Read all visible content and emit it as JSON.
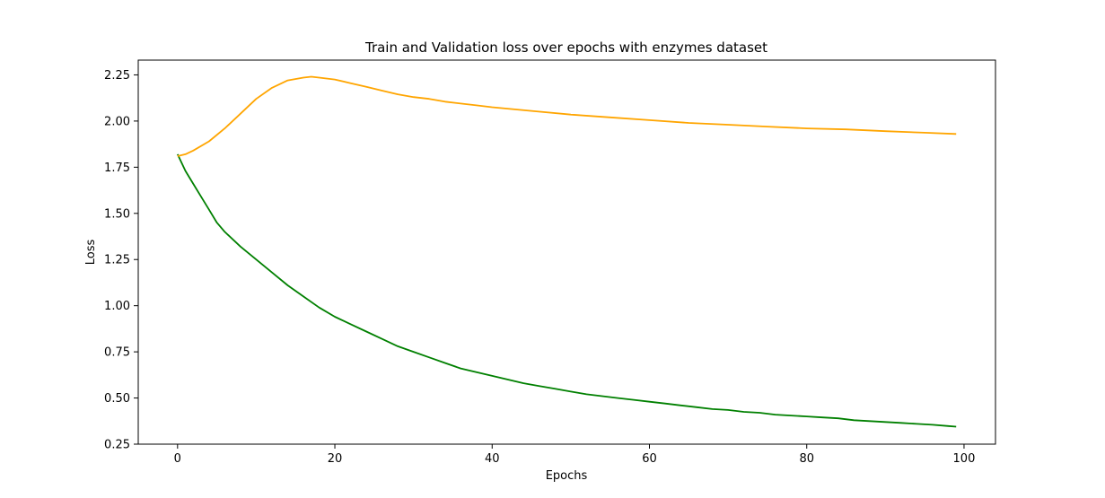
{
  "chart_data": {
    "type": "line",
    "title": "Train and Validation loss over epochs with enzymes dataset",
    "xlabel": "Epochs",
    "ylabel": "Loss",
    "xlim": [
      -5,
      104
    ],
    "ylim": [
      0.25,
      2.33
    ],
    "xticks": [
      0,
      20,
      40,
      60,
      80,
      100
    ],
    "yticks": [
      0.25,
      0.5,
      0.75,
      1.0,
      1.25,
      1.5,
      1.75,
      2.0,
      2.25
    ],
    "ytick_labels": [
      "0.25",
      "0.50",
      "0.75",
      "1.00",
      "1.25",
      "1.50",
      "1.75",
      "2.00",
      "2.25"
    ],
    "grid": false,
    "legend": "none",
    "series": [
      {
        "color": "#008000",
        "x": [
          0,
          1,
          2,
          3,
          4,
          5,
          6,
          8,
          10,
          12,
          14,
          16,
          18,
          20,
          22,
          24,
          26,
          28,
          30,
          32,
          34,
          36,
          38,
          40,
          42,
          44,
          46,
          48,
          50,
          52,
          54,
          56,
          58,
          60,
          62,
          64,
          66,
          68,
          70,
          72,
          74,
          76,
          78,
          80,
          82,
          84,
          86,
          88,
          90,
          92,
          94,
          96,
          98,
          99
        ],
        "y": [
          1.82,
          1.73,
          1.66,
          1.59,
          1.52,
          1.45,
          1.4,
          1.32,
          1.25,
          1.18,
          1.11,
          1.05,
          0.99,
          0.94,
          0.9,
          0.86,
          0.82,
          0.78,
          0.75,
          0.72,
          0.69,
          0.66,
          0.64,
          0.62,
          0.6,
          0.58,
          0.565,
          0.55,
          0.535,
          0.52,
          0.51,
          0.5,
          0.49,
          0.48,
          0.47,
          0.46,
          0.45,
          0.44,
          0.435,
          0.425,
          0.42,
          0.41,
          0.405,
          0.4,
          0.395,
          0.39,
          0.38,
          0.375,
          0.37,
          0.365,
          0.36,
          0.355,
          0.348,
          0.345
        ]
      },
      {
        "color": "#FFA500",
        "x": [
          0,
          1,
          2,
          4,
          6,
          8,
          10,
          12,
          14,
          16,
          17,
          18,
          20,
          22,
          24,
          26,
          28,
          30,
          32,
          34,
          36,
          38,
          40,
          45,
          50,
          55,
          60,
          65,
          70,
          75,
          80,
          85,
          90,
          95,
          99
        ],
        "y": [
          1.81,
          1.82,
          1.84,
          1.89,
          1.96,
          2.04,
          2.12,
          2.18,
          2.22,
          2.235,
          2.24,
          2.235,
          2.225,
          2.205,
          2.185,
          2.165,
          2.145,
          2.13,
          2.12,
          2.105,
          2.095,
          2.085,
          2.075,
          2.055,
          2.035,
          2.02,
          2.005,
          1.99,
          1.98,
          1.97,
          1.96,
          1.955,
          1.945,
          1.937,
          1.93
        ]
      }
    ]
  }
}
